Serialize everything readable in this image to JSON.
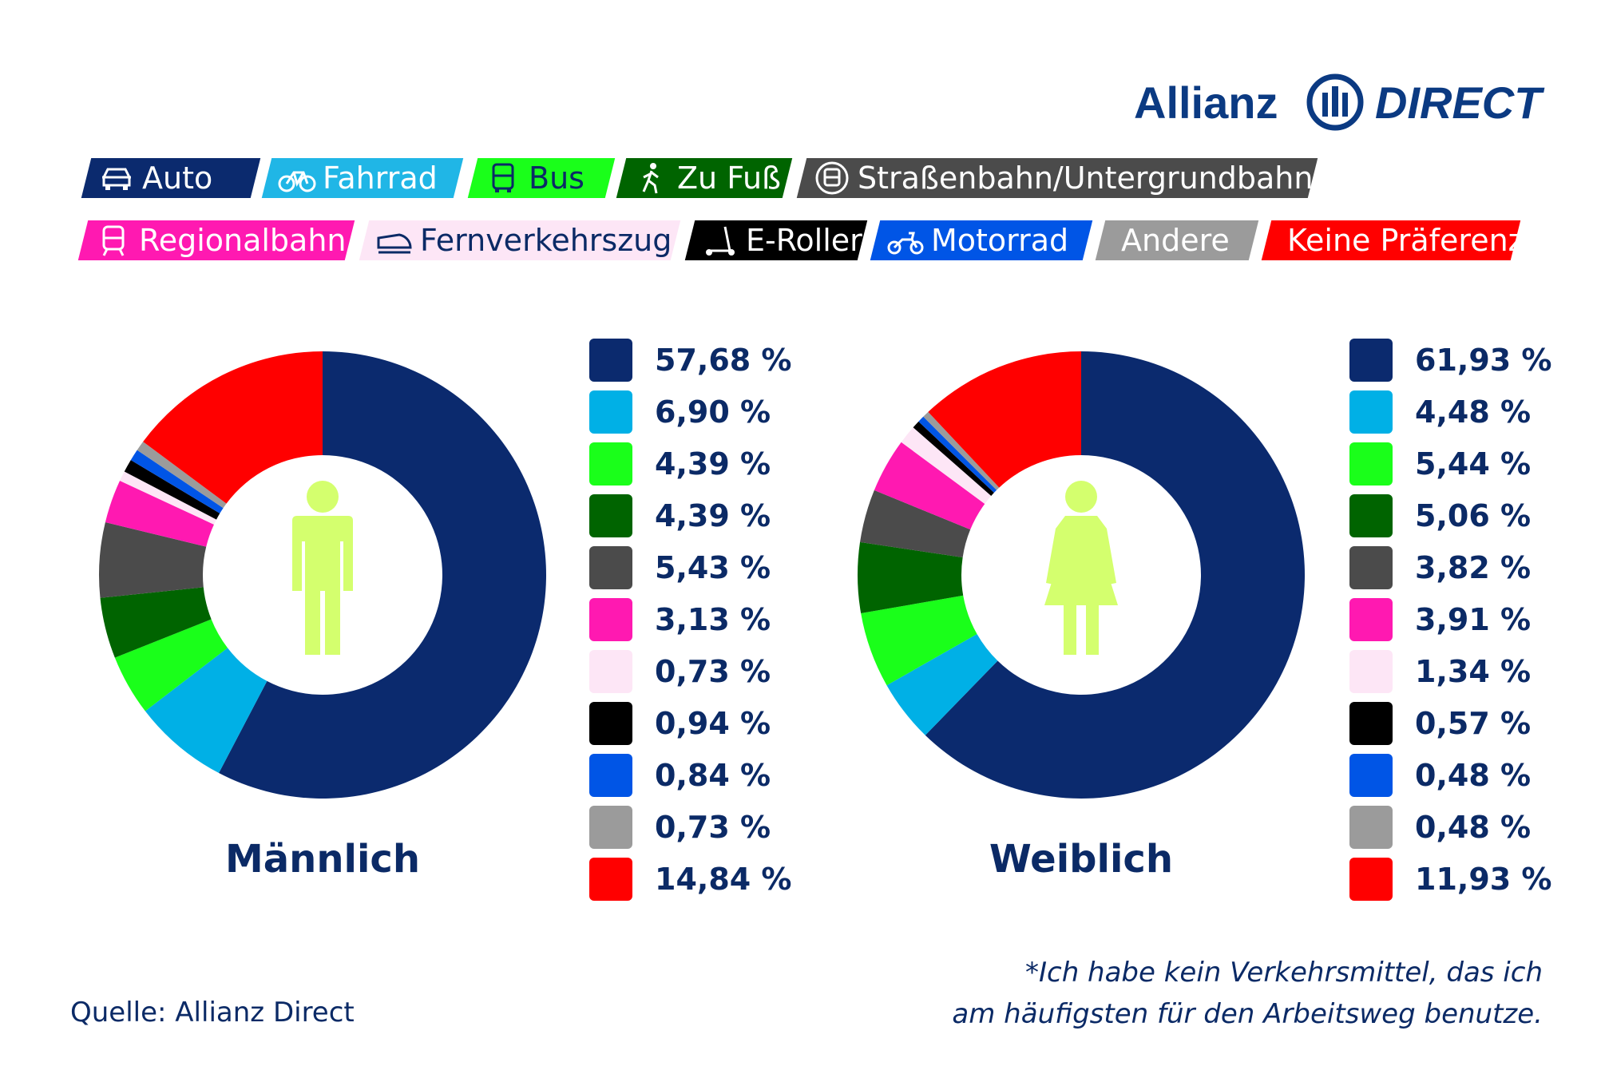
{
  "logo": {
    "brand": "Allianz",
    "sub": "DIRECT"
  },
  "legend": {
    "row1": [
      {
        "label": "Auto",
        "color": "#0b2a6e",
        "text_color": "#ffffff",
        "icon": "car-icon"
      },
      {
        "label": "Fahrrad",
        "color": "#20b6e6",
        "text_color": "#ffffff",
        "icon": "bicycle-icon"
      },
      {
        "label": "Bus",
        "color": "#1aff1a",
        "text_color": "#0b2a66",
        "icon": "bus-icon"
      },
      {
        "label": "Zu Fuß",
        "color": "#006400",
        "text_color": "#ffffff",
        "icon": "walking-icon"
      },
      {
        "label": "Straßenbahn/Untergrundbahn",
        "color": "#4b4b4b",
        "text_color": "#ffffff",
        "icon": "tram-icon"
      }
    ],
    "row2": [
      {
        "label": "Regionalbahn",
        "color": "#ff19b1",
        "text_color": "#ffffff",
        "icon": "train-icon"
      },
      {
        "label": "Fernverkehrszug",
        "color": "#fde6f6",
        "text_color": "#0b2a66",
        "icon": "high-speed-train-icon"
      },
      {
        "label": "E-Roller",
        "color": "#000000",
        "text_color": "#ffffff",
        "icon": "scooter-icon"
      },
      {
        "label": "Motorrad",
        "color": "#0055e6",
        "text_color": "#ffffff",
        "icon": "motorcycle-icon"
      },
      {
        "label": "Andere",
        "color": "#9b9b9b",
        "text_color": "#ffffff",
        "icon": ""
      },
      {
        "label": "Keine Präferenz*",
        "color": "#ff0000",
        "text_color": "#ffffff",
        "icon": ""
      }
    ]
  },
  "chart_data": [
    {
      "type": "pie",
      "title": "Männlich",
      "icon": "male-person-icon",
      "categories": [
        "Auto",
        "Fahrrad",
        "Bus",
        "Zu Fuß",
        "Straßenbahn/Untergrundbahn",
        "Regionalbahn",
        "Fernverkehrszug",
        "E-Roller",
        "Motorrad",
        "Andere",
        "Keine Präferenz*"
      ],
      "values": [
        57.68,
        6.9,
        4.39,
        4.39,
        5.43,
        3.13,
        0.73,
        0.94,
        0.84,
        0.73,
        14.84
      ],
      "labels": [
        "57,68 %",
        "6,90 %",
        "4,39 %",
        "4,39 %",
        "5,43 %",
        "3,13 %",
        "0,73 %",
        "0,94 %",
        "0,84 %",
        "0,73 %",
        "14,84 %"
      ],
      "colors": [
        "#0b2a6e",
        "#00b0e6",
        "#1aff1a",
        "#006400",
        "#4b4b4b",
        "#ff19b1",
        "#fde6f6",
        "#000000",
        "#0055e6",
        "#9b9b9b",
        "#ff0000"
      ]
    },
    {
      "type": "pie",
      "title": "Weiblich",
      "icon": "female-person-icon",
      "categories": [
        "Auto",
        "Fahrrad",
        "Bus",
        "Zu Fuß",
        "Straßenbahn/Untergrundbahn",
        "Regionalbahn",
        "Fernverkehrszug",
        "E-Roller",
        "Motorrad",
        "Andere",
        "Keine Präferenz*"
      ],
      "values": [
        61.93,
        4.48,
        5.44,
        5.06,
        3.82,
        3.91,
        1.34,
        0.57,
        0.48,
        0.48,
        11.93
      ],
      "labels": [
        "61,93 %",
        "4,48 %",
        "5,44 %",
        "5,06 %",
        "3,82 %",
        "3,91 %",
        "1,34 %",
        "0,57 %",
        "0,48 %",
        "0,48 %",
        "11,93 %"
      ],
      "colors": [
        "#0b2a6e",
        "#00b0e6",
        "#1aff1a",
        "#006400",
        "#4b4b4b",
        "#ff19b1",
        "#fde6f6",
        "#000000",
        "#0055e6",
        "#9b9b9b",
        "#ff0000"
      ]
    }
  ],
  "source": "Quelle: Allianz Direct",
  "footnote": {
    "line1": "*Ich habe kein Verkehrsmittel, das ich",
    "line2": "am häufigsten für den Arbeitsweg benutze."
  },
  "figure_color": "#d4ff6e"
}
